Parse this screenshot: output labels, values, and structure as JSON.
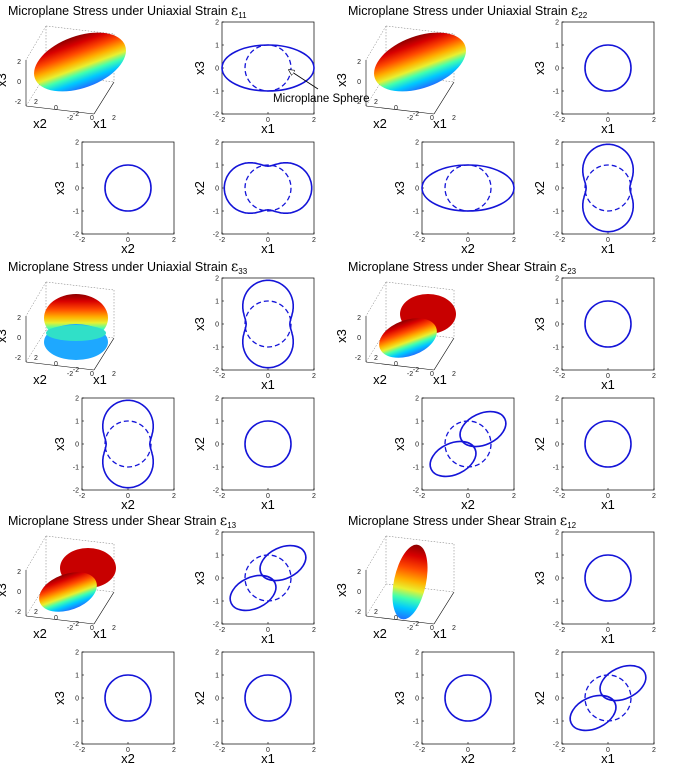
{
  "panels": [
    {
      "id": "e11",
      "title": "Microplane Stress under Uniaxial Strain ",
      "strain_symbol": "ε",
      "strain_sub": "11",
      "shape3d": {
        "type": "ellipsoid",
        "orientation": "x1-elongated"
      },
      "views": [
        {
          "view": "x1-x3",
          "xlabel": "x1",
          "ylabel": "x3",
          "shape": {
            "type": "ellipse",
            "a": 2,
            "b": 1,
            "angle": 0
          }
        },
        {
          "view": "x2-x3",
          "xlabel": "x2",
          "ylabel": "x3",
          "shape": {
            "type": "circle",
            "r": 1
          }
        },
        {
          "view": "x1-x2",
          "xlabel": "x1",
          "ylabel": "x2",
          "shape": {
            "type": "peanut-horizontal"
          }
        }
      ]
    },
    {
      "id": "e22",
      "title": "Microplane Stress under Uniaxial Strain ",
      "strain_symbol": "ε",
      "strain_sub": "22",
      "shape3d": {
        "type": "ellipsoid",
        "orientation": "x2-elongated"
      },
      "views": [
        {
          "view": "x1-x3",
          "xlabel": "x1",
          "ylabel": "x3",
          "shape": {
            "type": "circle",
            "r": 1
          }
        },
        {
          "view": "x2-x3",
          "xlabel": "x2",
          "ylabel": "x3",
          "shape": {
            "type": "ellipse",
            "a": 2,
            "b": 1,
            "angle": 0
          }
        },
        {
          "view": "x1-x2",
          "xlabel": "x1",
          "ylabel": "x2",
          "shape": {
            "type": "peanut-vertical"
          }
        }
      ]
    },
    {
      "id": "e33",
      "title": "Microplane Stress under Uniaxial Strain ",
      "strain_symbol": "ε",
      "strain_sub": "33",
      "shape3d": {
        "type": "peanut",
        "orientation": "x3"
      },
      "views": [
        {
          "view": "x1-x3",
          "xlabel": "x1",
          "ylabel": "x3",
          "shape": {
            "type": "peanut-vertical"
          }
        },
        {
          "view": "x2-x3",
          "xlabel": "x2",
          "ylabel": "x3",
          "shape": {
            "type": "peanut-vertical"
          }
        },
        {
          "view": "x1-x2",
          "xlabel": "x1",
          "ylabel": "x2",
          "shape": {
            "type": "circle",
            "r": 1
          }
        }
      ]
    },
    {
      "id": "e23",
      "title": "Microplane Stress under Shear Strain ",
      "strain_symbol": "ε",
      "strain_sub": "23",
      "shape3d": {
        "type": "peanut",
        "orientation": "tilted"
      },
      "views": [
        {
          "view": "x1-x3",
          "xlabel": "x1",
          "ylabel": "x3",
          "shape": {
            "type": "circle",
            "r": 1
          }
        },
        {
          "view": "x2-x3",
          "xlabel": "x2",
          "ylabel": "x3",
          "shape": {
            "type": "twin-ellipses"
          }
        },
        {
          "view": "x1-x2",
          "xlabel": "x1",
          "ylabel": "x2",
          "shape": {
            "type": "circle",
            "r": 1
          }
        }
      ]
    },
    {
      "id": "e13",
      "title": "Microplane Stress under Shear Strain ",
      "strain_symbol": "ε",
      "strain_sub": "13",
      "shape3d": {
        "type": "peanut",
        "orientation": "tilted"
      },
      "views": [
        {
          "view": "x1-x3",
          "xlabel": "x1",
          "ylabel": "x3",
          "shape": {
            "type": "twin-ellipses"
          }
        },
        {
          "view": "x2-x3",
          "xlabel": "x2",
          "ylabel": "x3",
          "shape": {
            "type": "circle",
            "r": 1
          }
        },
        {
          "view": "x1-x2",
          "xlabel": "x1",
          "ylabel": "x2",
          "shape": {
            "type": "circle",
            "r": 1
          }
        }
      ]
    },
    {
      "id": "e12",
      "title": "Microplane Stress under Shear Strain ",
      "strain_symbol": "ε",
      "strain_sub": "12",
      "shape3d": {
        "type": "peanut",
        "orientation": "vertical-tilted"
      },
      "views": [
        {
          "view": "x1-x3",
          "xlabel": "x1",
          "ylabel": "x3",
          "shape": {
            "type": "circle",
            "r": 1
          }
        },
        {
          "view": "x2-x3",
          "xlabel": "x2",
          "ylabel": "x3",
          "shape": {
            "type": "circle",
            "r": 1
          }
        },
        {
          "view": "x1-x2",
          "xlabel": "x1",
          "ylabel": "x2",
          "shape": {
            "type": "twin-ellipses"
          }
        }
      ]
    }
  ],
  "axis_limits": [
    -2,
    2
  ],
  "ticks_2d": [
    "-2",
    "0",
    "2"
  ],
  "ticks_2d_y": [
    "2",
    "1",
    "0",
    "-1",
    "-2"
  ],
  "ticks_3d_x3": [
    "2",
    "0",
    "-2"
  ],
  "ticks_3d_x1": [
    "-2",
    "0",
    "2"
  ],
  "ticks_3d_x2": [
    "2",
    "0",
    "-2"
  ],
  "ticks_e33_x3": [
    "2",
    "1",
    "0",
    "-1",
    "-2"
  ],
  "annotation": {
    "text": "Microplane Sphere"
  },
  "colors": {
    "curve": "#1414d8",
    "frame": "#000000",
    "colormap": [
      "#8b0000",
      "#ff2000",
      "#ff8c00",
      "#ffff00",
      "#00ffbf",
      "#00bfff",
      "#0060ff"
    ]
  }
}
